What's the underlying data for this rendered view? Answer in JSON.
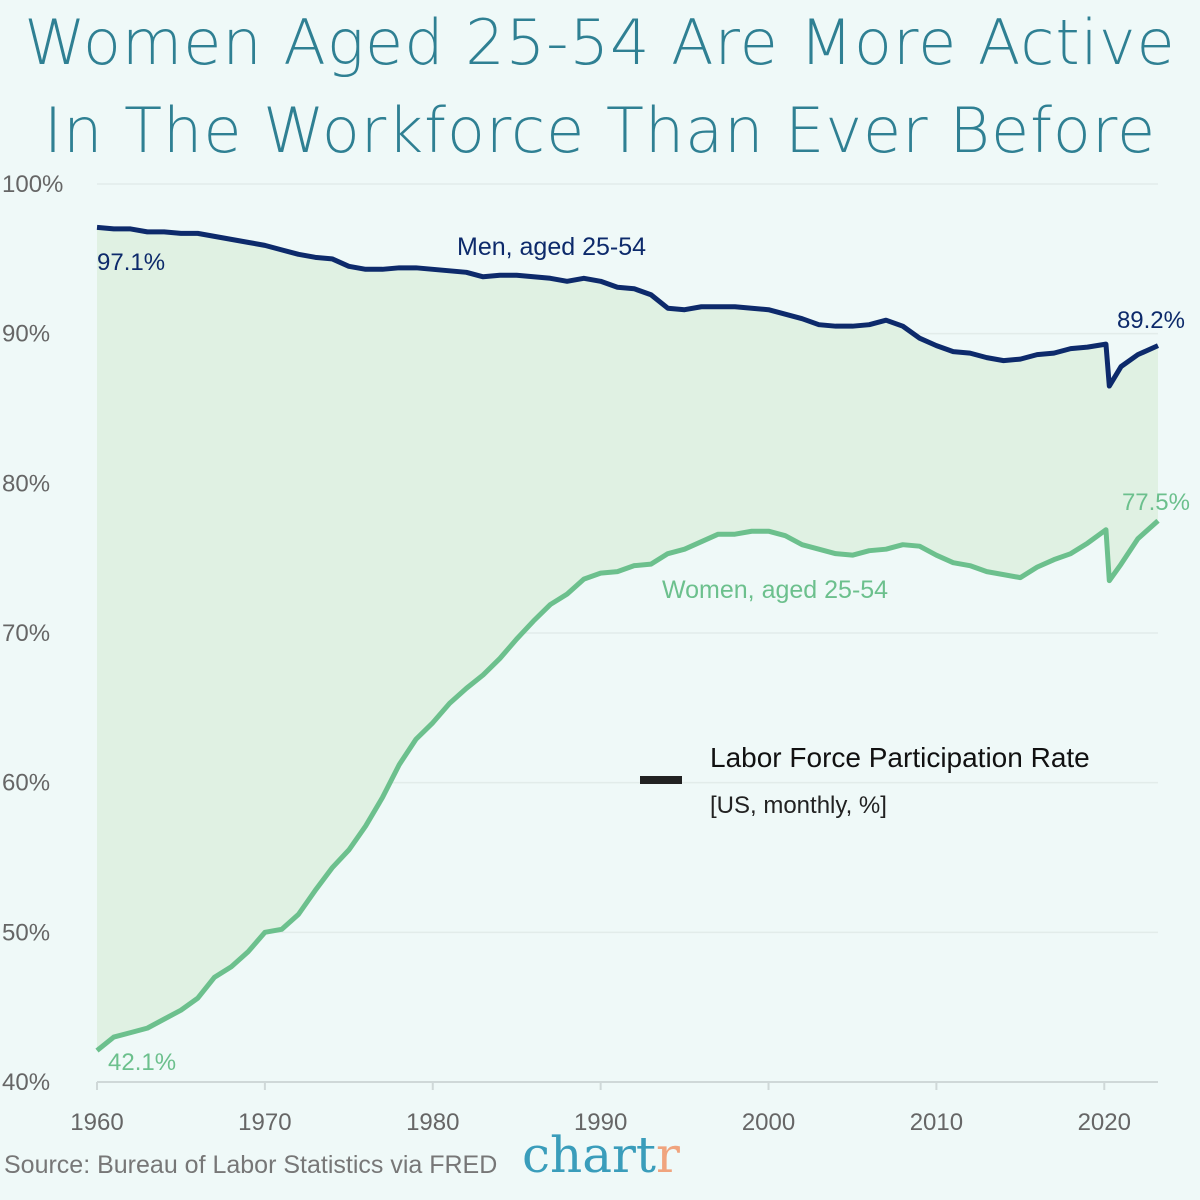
{
  "chart_data": {
    "type": "area",
    "title_lines": [
      "Women Aged 25-54 Are More Active",
      "In The Workforce Than Ever Before"
    ],
    "legend": {
      "label": "Labor Force Participation Rate",
      "sublabel": "[US, monthly, %]",
      "placement": "center-right"
    },
    "source": "Source: Bureau of Labor Statistics via FRED",
    "logo": "chartr",
    "xlim": [
      1960,
      2023.2
    ],
    "ylim": [
      40,
      100
    ],
    "x_ticks": [
      "1960",
      "1970",
      "1980",
      "1990",
      "2000",
      "2010",
      "2020"
    ],
    "y_ticks": [
      "40%",
      "50%",
      "60%",
      "70%",
      "80%",
      "90%",
      "100%"
    ],
    "grid": "horizontal",
    "fill_between": "#e0f1e3",
    "series": [
      {
        "name": "Men, aged 25-54",
        "color": "#0d2a6b",
        "start_label": "97.1%",
        "end_label": "89.2%",
        "x": [
          1960,
          1961,
          1962,
          1963,
          1964,
          1965,
          1966,
          1967,
          1968,
          1969,
          1970,
          1971,
          1972,
          1973,
          1974,
          1975,
          1976,
          1977,
          1978,
          1979,
          1980,
          1981,
          1982,
          1983,
          1984,
          1985,
          1986,
          1987,
          1988,
          1989,
          1990,
          1991,
          1992,
          1993,
          1994,
          1995,
          1996,
          1997,
          1998,
          1999,
          2000,
          2001,
          2002,
          2003,
          2004,
          2005,
          2006,
          2007,
          2008,
          2009,
          2010,
          2011,
          2012,
          2013,
          2014,
          2015,
          2016,
          2017,
          2018,
          2019,
          2020.1,
          2020.3,
          2021,
          2022,
          2023.2
        ],
        "y": [
          97.1,
          97.0,
          97.0,
          96.8,
          96.8,
          96.7,
          96.7,
          96.5,
          96.3,
          96.1,
          95.9,
          95.6,
          95.3,
          95.1,
          95.0,
          94.5,
          94.3,
          94.3,
          94.4,
          94.4,
          94.3,
          94.2,
          94.1,
          93.8,
          93.9,
          93.9,
          93.8,
          93.7,
          93.5,
          93.7,
          93.5,
          93.1,
          93.0,
          92.6,
          91.7,
          91.6,
          91.8,
          91.8,
          91.8,
          91.7,
          91.6,
          91.3,
          91.0,
          90.6,
          90.5,
          90.5,
          90.6,
          90.9,
          90.5,
          89.7,
          89.2,
          88.8,
          88.7,
          88.4,
          88.2,
          88.3,
          88.6,
          88.7,
          89.0,
          89.1,
          89.3,
          86.5,
          87.8,
          88.6,
          89.2
        ]
      },
      {
        "name": "Women, aged 25-54",
        "color": "#6cc08d",
        "start_label": "42.1%",
        "end_label": "77.5%",
        "x": [
          1960,
          1961,
          1962,
          1963,
          1964,
          1965,
          1966,
          1967,
          1968,
          1969,
          1970,
          1971,
          1972,
          1973,
          1974,
          1975,
          1976,
          1977,
          1978,
          1979,
          1980,
          1981,
          1982,
          1983,
          1984,
          1985,
          1986,
          1987,
          1988,
          1989,
          1990,
          1991,
          1992,
          1993,
          1994,
          1995,
          1996,
          1997,
          1998,
          1999,
          2000,
          2001,
          2002,
          2003,
          2004,
          2005,
          2006,
          2007,
          2008,
          2009,
          2010,
          2011,
          2012,
          2013,
          2014,
          2015,
          2016,
          2017,
          2018,
          2019,
          2020.1,
          2020.3,
          2021,
          2022,
          2023.2
        ],
        "y": [
          42.1,
          43.0,
          43.3,
          43.6,
          44.2,
          44.8,
          45.6,
          47.0,
          47.7,
          48.7,
          50.0,
          50.2,
          51.2,
          52.8,
          54.3,
          55.5,
          57.1,
          59.0,
          61.2,
          62.9,
          64.0,
          65.3,
          66.3,
          67.2,
          68.3,
          69.6,
          70.8,
          71.9,
          72.6,
          73.6,
          74.0,
          74.1,
          74.5,
          74.6,
          75.3,
          75.6,
          76.1,
          76.6,
          76.6,
          76.8,
          76.8,
          76.5,
          75.9,
          75.6,
          75.3,
          75.2,
          75.5,
          75.6,
          75.9,
          75.8,
          75.2,
          74.7,
          74.5,
          74.1,
          73.9,
          73.7,
          74.4,
          74.9,
          75.3,
          76.0,
          76.9,
          73.5,
          74.6,
          76.3,
          77.5
        ]
      }
    ]
  }
}
